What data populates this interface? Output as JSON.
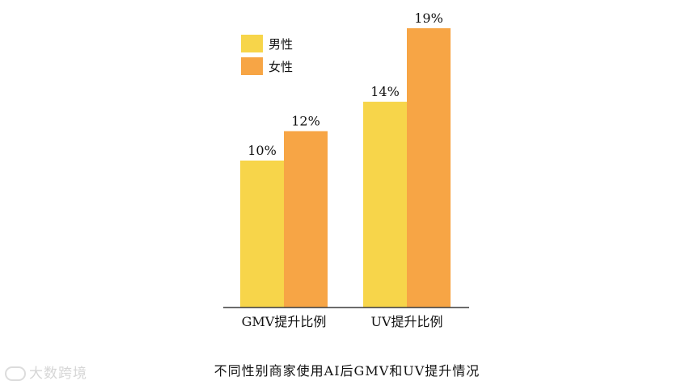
{
  "chart_data": {
    "type": "bar",
    "categories": [
      "GMV提升比例",
      "UV提升比例"
    ],
    "series": [
      {
        "name": "男性",
        "values": [
          10,
          14
        ],
        "labels": [
          "10%",
          "14%"
        ],
        "color": "#f7d54a"
      },
      {
        "name": "女性",
        "values": [
          12,
          19
        ],
        "labels": [
          "12%",
          "19%"
        ],
        "color": "#f7a545"
      }
    ],
    "ylim": [
      0,
      19
    ],
    "grid": false,
    "legend": "top-left",
    "title": "不同性别商家使用AI后GMV和UV提升情况"
  },
  "watermark": "大数跨境",
  "colors": {
    "axis": "#3a3a3a",
    "text": "#111111"
  }
}
